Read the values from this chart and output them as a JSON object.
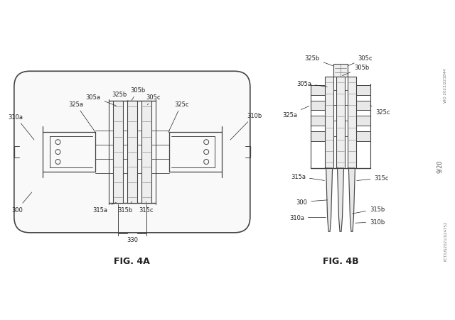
{
  "background_color": "#ffffff",
  "fig_width": 6.4,
  "fig_height": 4.52,
  "dpi": 100,
  "line_color": "#444444",
  "text_color": "#222222",
  "fig4a_label": "FIG. 4A",
  "fig4b_label": "FIG. 4B",
  "page_num": "9/20",
  "patent_num_top": "WO 2023/221844",
  "patent_num_bottom": "PCT/US2021/024752",
  "fig_label_fontsize": 9,
  "annotation_fontsize": 6.0
}
